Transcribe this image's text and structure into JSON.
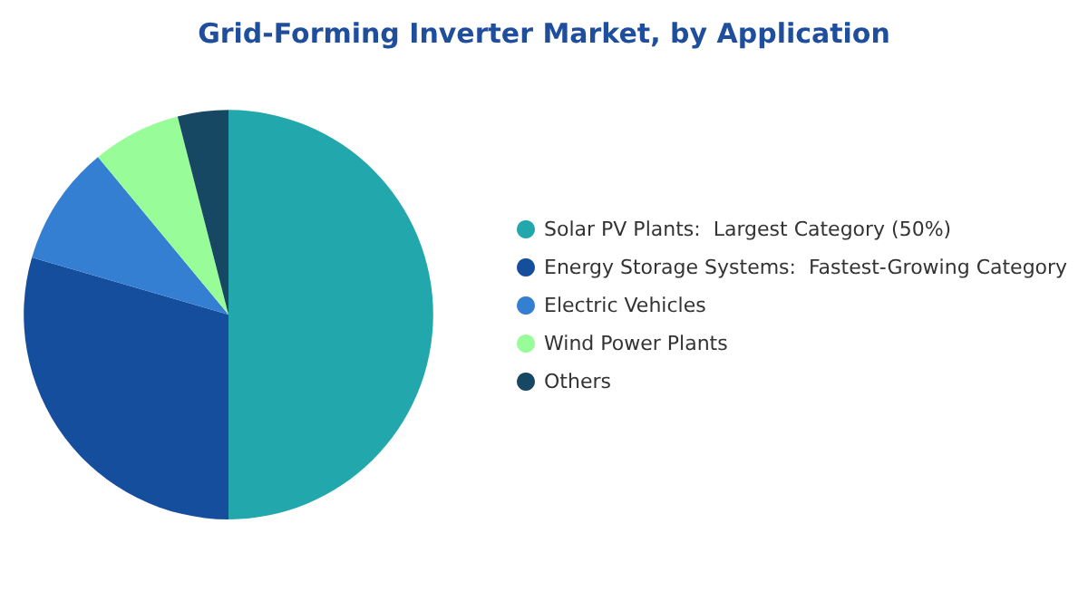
{
  "chart_data": {
    "type": "pie",
    "title": "Grid-Forming Inverter Market, by Application",
    "categories": [
      "Solar PV Plants:  Largest Category (50%)",
      "Energy Storage Systems:  Fastest-Growing Category",
      "Electric Vehicles",
      "Wind Power Plants",
      "Others"
    ],
    "values": [
      50,
      29.5,
      9.5,
      7,
      4
    ],
    "colors": [
      "#22a7ad",
      "#164e9e",
      "#347fd2",
      "#98fc98",
      "#174863"
    ],
    "legend": "right"
  }
}
